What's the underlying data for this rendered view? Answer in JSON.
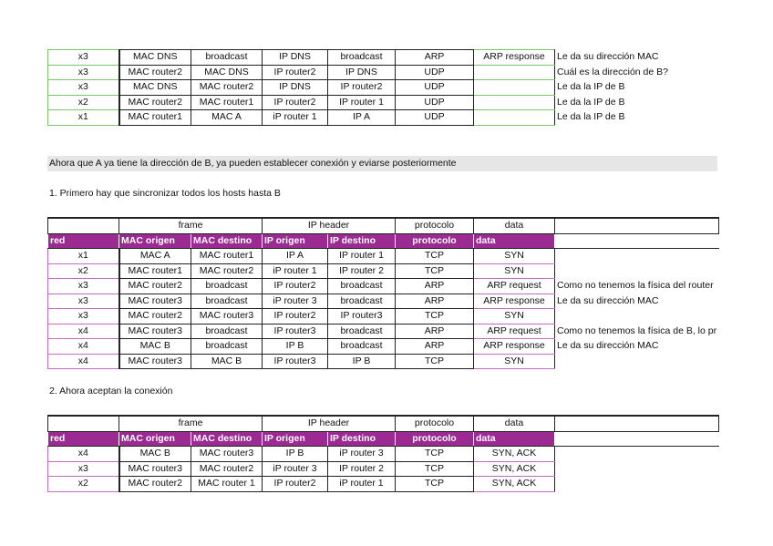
{
  "table_top": {
    "rows": [
      [
        "x3",
        "MAC DNS",
        "broadcast",
        "IP DNS",
        "broadcast",
        "ARP",
        "ARP response",
        "Le da su dirección MAC"
      ],
      [
        "x3",
        "MAC router2",
        "MAC DNS",
        "IP router2",
        "IP DNS",
        "UDP",
        "",
        "Cuál es la dirección de B?"
      ],
      [
        "x3",
        "MAC DNS",
        "MAC router2",
        "IP DNS",
        "IP router2",
        "UDP",
        "",
        "Le da la IP de B"
      ],
      [
        "x2",
        "MAC router2",
        "MAC router1",
        "IP router2",
        "IP router 1",
        "UDP",
        "",
        "Le da la IP de B"
      ],
      [
        "x1",
        "MAC router1",
        "MAC A",
        "iP router 1",
        "IP A",
        "UDP",
        "",
        "Le da la IP de B"
      ]
    ]
  },
  "band_text": "Ahora que A ya tiene la dirección de B, ya pueden establecer conexión y eviarse posteriormente",
  "step1": "1. Primero hay que sincronizar todos los hosts hasta B",
  "step2": "2. Ahora aceptan la conexión",
  "groups": [
    "frame",
    "IP header",
    "protocolo",
    "data"
  ],
  "headers": [
    "red",
    "MAC origen",
    "MAC destino",
    "IP origen",
    "IP destino",
    "protocolo",
    "data"
  ],
  "table_sync": {
    "rows": [
      [
        "x1",
        "MAC A",
        "MAC router1",
        "IP A",
        "IP router 1",
        "TCP",
        "SYN",
        ""
      ],
      [
        "x2",
        "MAC router1",
        "MAC router2",
        "iP router 1",
        "IP router 2",
        "TCP",
        "SYN",
        ""
      ],
      [
        "x3",
        "MAC router2",
        "broadcast",
        "IP router2",
        "broadcast",
        "ARP",
        "ARP request",
        "Como no tenemos la física del router"
      ],
      [
        "x3",
        "MAC router3",
        "broadcast",
        "iP router 3",
        "broadcast",
        "ARP",
        "ARP response",
        "Le da su dirección MAC"
      ],
      [
        "x3",
        "MAC router2",
        "MAC router3",
        "IP router2",
        "IP router3",
        "TCP",
        "SYN",
        ""
      ],
      [
        "x4",
        "MAC router3",
        "broadcast",
        "IP router3",
        "broadcast",
        "ARP",
        "ARP request",
        "Como no tenemos la física de B, lo pr"
      ],
      [
        "x4",
        "MAC B",
        "broadcast",
        "IP B",
        "broadcast",
        "ARP",
        "ARP response",
        "Le da su dirección MAC"
      ],
      [
        "x4",
        "MAC router3",
        "MAC B",
        "IP router3",
        "IP B",
        "TCP",
        "SYN",
        ""
      ]
    ]
  },
  "table_accept": {
    "rows": [
      [
        "x4",
        "MAC B",
        "MAC router3",
        "IP B",
        "iP router 3",
        "TCP",
        "SYN, ACK",
        ""
      ],
      [
        "x3",
        "MAC router3",
        "MAC router2",
        "iP router 3",
        "IP router 2",
        "TCP",
        "SYN, ACK",
        ""
      ],
      [
        "x2",
        "MAC router2",
        "MAC router 1",
        "IP router2",
        "iP router 1",
        "TCP",
        "SYN, ACK",
        ""
      ]
    ]
  },
  "colors": {
    "header_purple": "#9b2a93",
    "row_border_pink": "#c36bbf",
    "row_border_green": "#7cc46a",
    "band_gray": "#e6e6e6"
  }
}
